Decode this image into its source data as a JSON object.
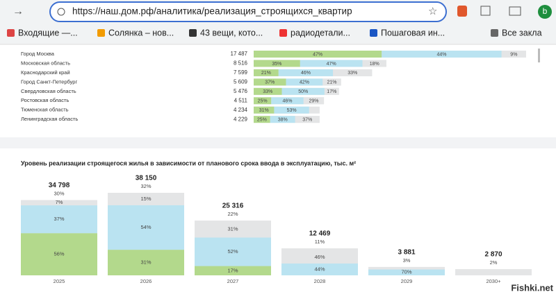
{
  "browser": {
    "url": "https://наш.дом.рф/аналитика/реализация_строящихся_квартир",
    "bookmarks": [
      "Входящие —...",
      "Солянка – нов...",
      "43 вещи, кото...",
      "радиодетали...",
      "Пошаговая ин...",
      "Все закла"
    ],
    "profile": "b"
  },
  "watermark": "Fishki.net",
  "chart_data": [
    {
      "type": "bar",
      "orientation": "horizontal",
      "categories": [
        "Город Москва",
        "Московская область",
        "Краснодарский край",
        "Город Санкт-Петербург",
        "Свердловская область",
        "Ростовская область",
        "Тюменская область",
        "Ленинградская область"
      ],
      "values": [
        17487,
        8516,
        7599,
        5609,
        5476,
        4511,
        4234,
        4229
      ],
      "value_labels": [
        "17 487",
        "8 516",
        "7 599",
        "5 609",
        "5 476",
        "4 511",
        "4 234",
        "4 229"
      ],
      "track_color": "#e4e5e6",
      "series": [
        {
          "color": "#b3d98c",
          "values": [
            47,
            35,
            21,
            37,
            33,
            25,
            31,
            25
          ],
          "value_labels": [
            "47%",
            "35%",
            "21%",
            "37%",
            "33%",
            "25%",
            "31%",
            "25%"
          ]
        },
        {
          "color": "#bae3f1",
          "values": [
            44,
            47,
            46,
            42,
            50,
            46,
            53,
            38
          ],
          "value_labels": [
            "44%",
            "47%",
            "46%",
            "42%",
            "50%",
            "46%",
            "53%",
            "38%"
          ]
        },
        {
          "color": "#e4e5e6",
          "values": [
            9,
            18,
            33,
            21,
            17,
            29,
            null,
            37
          ],
          "value_labels": [
            "9%",
            "18%",
            "33%",
            "21%",
            "17%",
            "29%",
            null,
            "37%"
          ]
        }
      ]
    },
    {
      "type": "bar",
      "orientation": "vertical",
      "title": "Уровень реализации строящегося жилья в зависимости от планового срока ввода в эксплуатацию, тыс. м²",
      "categories": [
        "2025",
        "2026",
        "2027",
        "2028",
        "2029",
        "2030+"
      ],
      "values": [
        34798,
        38150,
        25316,
        12469,
        3881,
        2870
      ],
      "value_labels": [
        "34 798",
        "38 150",
        "25 316",
        "12 469",
        "3 881",
        "2 870"
      ],
      "shares": [
        30,
        32,
        22,
        11,
        3,
        2
      ],
      "share_labels": [
        "30%",
        "32%",
        "22%",
        "11%",
        "3%",
        "2%"
      ],
      "track_color": "#e4e5e6",
      "series": [
        {
          "color": "#b3d98c",
          "values": [
            56,
            31,
            17,
            null,
            null,
            null
          ],
          "value_labels": [
            "56%",
            "31%",
            "17%",
            null,
            null,
            null
          ]
        },
        {
          "color": "#bae3f1",
          "values": [
            37,
            54,
            52,
            44,
            70,
            null
          ],
          "value_labels": [
            "37%",
            "54%",
            "52%",
            "44%",
            "70%",
            null
          ]
        },
        {
          "color": "#e4e5e6",
          "values": [
            7,
            15,
            31,
            46,
            null,
            null
          ],
          "value_labels": [
            "7%",
            "15%",
            "31%",
            "46%",
            null,
            null
          ]
        }
      ]
    }
  ]
}
